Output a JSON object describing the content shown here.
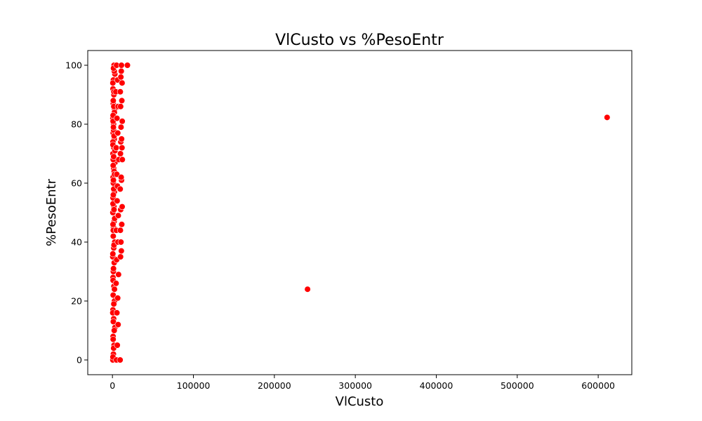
{
  "chart_data": {
    "type": "scatter",
    "title": "VlCusto vs %PesoEntr",
    "xlabel": "VlCusto",
    "ylabel": "%PesoEntr",
    "xlim": [
      -30500,
      641500
    ],
    "ylim": [
      -5,
      105
    ],
    "xticks": [
      0,
      100000,
      200000,
      300000,
      400000,
      500000,
      600000
    ],
    "yticks": [
      0,
      20,
      40,
      60,
      80,
      100
    ],
    "grid": false,
    "legend": "none",
    "marker_color": "#ff0000",
    "marker_edge_color": "#ffffff",
    "series": [
      {
        "x": [
          500,
          1200,
          2000,
          800,
          3000,
          1500,
          600,
          2500,
          900,
          1800,
          700,
          1100,
          2200,
          400,
          1600,
          2800,
          1000,
          1300,
          2100,
          500,
          1900,
          700,
          2400,
          1100,
          800,
          1500,
          3200,
          600,
          1700,
          2300,
          900,
          1400,
          500,
          2600,
          1000,
          1800,
          700,
          1200,
          3000,
          2000,
          600,
          1500,
          900,
          2200,
          1100,
          400,
          1700,
          2500,
          800,
          1300,
          500,
          1900,
          1000,
          2700,
          700,
          1600,
          1200,
          2100,
          900,
          3100,
          600,
          1400,
          800,
          2400,
          1000,
          1800,
          500,
          2300,
          1300,
          700,
          1900,
          1100,
          2600,
          900,
          1500,
          600,
          2000,
          1200,
          800,
          1700,
          5000,
          6000,
          7000,
          5500,
          6500,
          4500,
          7500,
          5200,
          6800,
          4800,
          7200,
          5800,
          6200,
          5400,
          7800,
          4600,
          6600,
          5600,
          7000,
          4200,
          6300,
          5100,
          9500,
          10000,
          11000,
          10500,
          9800,
          11500,
          10200,
          12000,
          9600,
          11200,
          10800,
          12200,
          9900,
          11800,
          10300,
          11300,
          10600,
          12100,
          10100,
          11600,
          9700,
          11900,
          10400,
          10900,
          11100,
          18500,
          241000,
          611000
        ],
        "y": [
          0,
          2,
          5,
          8,
          11,
          14,
          17,
          20,
          22,
          25,
          28,
          30,
          33,
          35,
          38,
          40,
          42,
          45,
          47,
          50,
          52,
          55,
          57,
          60,
          62,
          65,
          67,
          70,
          72,
          75,
          77,
          80,
          82,
          85,
          87,
          90,
          92,
          95,
          97,
          100,
          1,
          4,
          7,
          10,
          13,
          16,
          19,
          24,
          27,
          31,
          36,
          39,
          44,
          48,
          53,
          58,
          61,
          64,
          68,
          71,
          74,
          78,
          81,
          84,
          88,
          91,
          94,
          98,
          99,
          46,
          51,
          56,
          63,
          66,
          69,
          73,
          76,
          79,
          83,
          86,
          0,
          5,
          12,
          16,
          21,
          26,
          29,
          34,
          40,
          44,
          49,
          54,
          59,
          63,
          68,
          72,
          77,
          82,
          86,
          91,
          95,
          100,
          0,
          35,
          37,
          40,
          44,
          46,
          51,
          52,
          58,
          61,
          62,
          68,
          70,
          72,
          74,
          75,
          79,
          81,
          86,
          88,
          91,
          94,
          96,
          98,
          100,
          100,
          24,
          82.3
        ]
      }
    ]
  }
}
